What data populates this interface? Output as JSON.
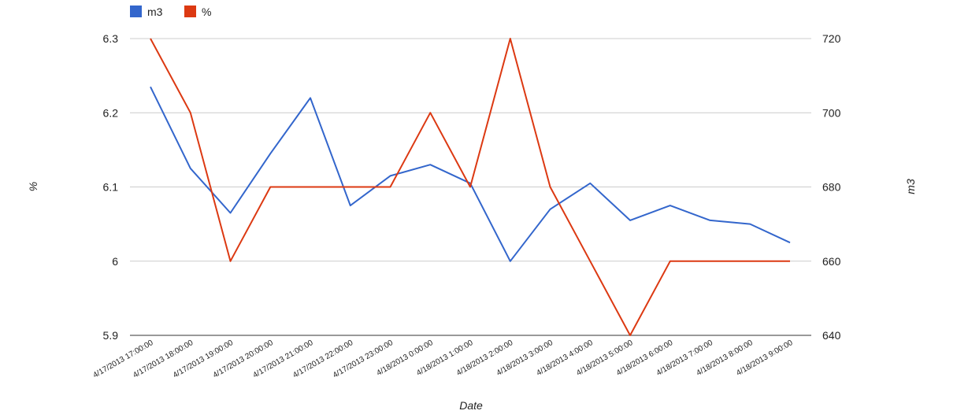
{
  "chart_data": {
    "type": "line",
    "title": "",
    "xlabel": "Date",
    "ylabel_left": "%",
    "ylabel_right": "m3",
    "grid": true,
    "legend_position": "top-left",
    "categories": [
      "4/17/2013 17:00:00",
      "4/17/2013 18:00:00",
      "4/17/2013 19:00:00",
      "4/17/2013 20:00:00",
      "4/17/2013 21:00:00",
      "4/17/2013 22:00:00",
      "4/17/2013 23:00:00",
      "4/18/2013 0:00:00",
      "4/18/2013 1:00:00",
      "4/18/2013 2:00:00",
      "4/18/2013 3:00:00",
      "4/18/2013 4:00:00",
      "4/18/2013 5:00:00",
      "4/18/2013 6:00:00",
      "4/18/2013 7:00:00",
      "4/18/2013 8:00:00",
      "4/18/2013 9:00:00"
    ],
    "left_axis": {
      "min": 5.9,
      "max": 6.3,
      "ticks": [
        "6.3",
        "6.2",
        "6.1",
        "6",
        "5.9"
      ]
    },
    "right_axis": {
      "min": 640,
      "max": 720,
      "ticks": [
        "720",
        "700",
        "680",
        "660",
        "640"
      ]
    },
    "series": [
      {
        "name": "m3",
        "color": "#3366cc",
        "axis": "right",
        "values": [
          707,
          685,
          673,
          689,
          704,
          675,
          683,
          686,
          681,
          660,
          674,
          681,
          671,
          675,
          671,
          670,
          665
        ]
      },
      {
        "name": "%",
        "color": "#dc3912",
        "axis": "left",
        "values": [
          6.3,
          6.2,
          6.0,
          6.1,
          6.1,
          6.1,
          6.1,
          6.2,
          6.1,
          6.3,
          6.1,
          6.0,
          5.9,
          6.0,
          6.0,
          6.0,
          6.0
        ]
      }
    ]
  }
}
